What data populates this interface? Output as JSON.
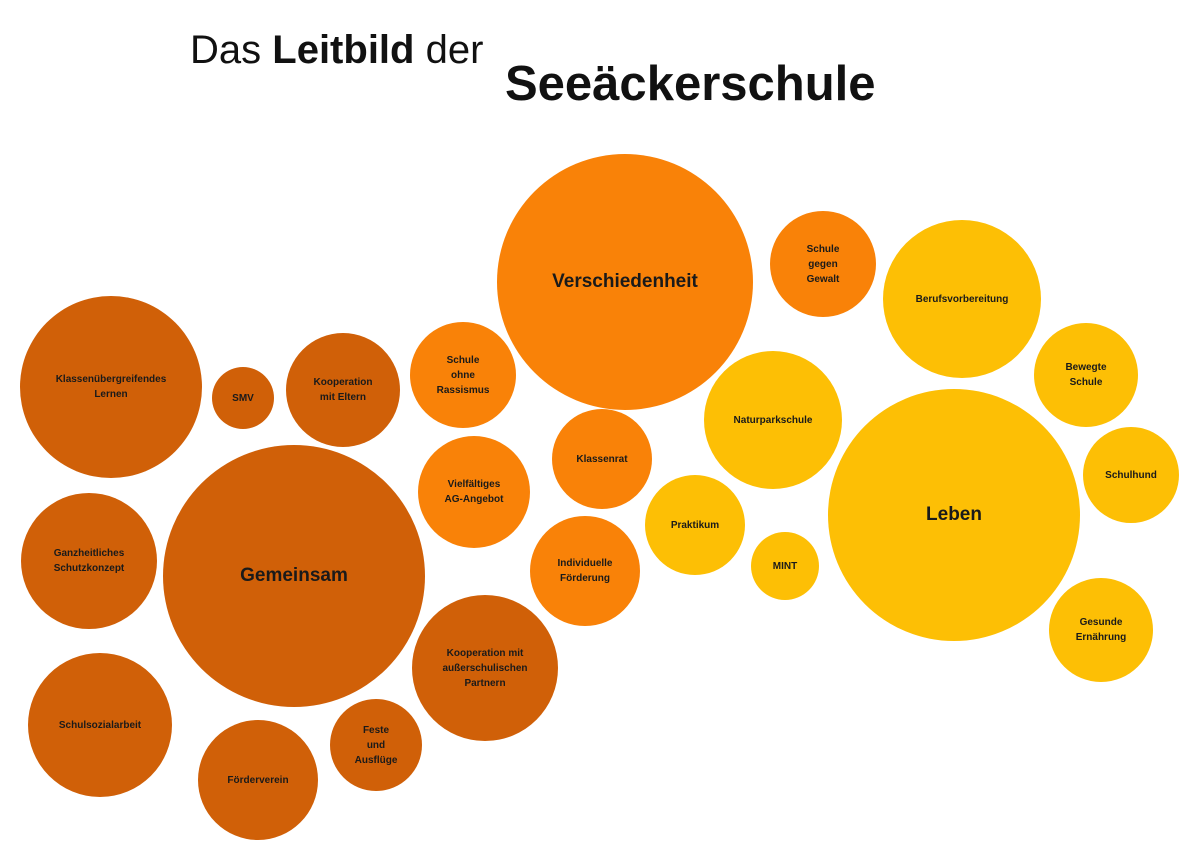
{
  "title": {
    "prefix": "Das",
    "bold": "Leitbild",
    "suffix": "der",
    "school": "Seeäckerschule"
  },
  "colors": {
    "dark_orange": "#D06008",
    "orange": "#F98208",
    "yellow": "#FDBF05"
  },
  "bubbles": [
    {
      "id": "klassenuebergreifendes-lernen",
      "label": "Klassenübergreifendes\nLernen",
      "color": "dark_orange"
    },
    {
      "id": "smv",
      "label": "SMV",
      "color": "dark_orange"
    },
    {
      "id": "kooperation-mit-eltern",
      "label": "Kooperation\nmit Eltern",
      "color": "dark_orange"
    },
    {
      "id": "ganzheitliches-schutzkonzept",
      "label": "Ganzheitliches\nSchutzkonzept",
      "color": "dark_orange"
    },
    {
      "id": "gemeinsam",
      "label": "Gemeinsam",
      "color": "dark_orange"
    },
    {
      "id": "schulsozialarbeit",
      "label": "Schulsozialarbeit",
      "color": "dark_orange"
    },
    {
      "id": "foerderverein",
      "label": "Förderverein",
      "color": "dark_orange"
    },
    {
      "id": "feste-und-ausfluege",
      "label": "Feste\nund\nAusflüge",
      "color": "dark_orange"
    },
    {
      "id": "kooperation-mit-ausserschulischen-partnern",
      "label": "Kooperation mit\naußerschulischen\nPartnern",
      "color": "dark_orange"
    },
    {
      "id": "schule-ohne-rassismus",
      "label": "Schule\nohne\nRassismus",
      "color": "orange"
    },
    {
      "id": "vielfaeltiges-ag-angebot",
      "label": "Vielfältiges\nAG-Angebot",
      "color": "orange"
    },
    {
      "id": "verschiedenheit",
      "label": "Verschiedenheit",
      "color": "orange"
    },
    {
      "id": "schule-gegen-gewalt",
      "label": "Schule\ngegen\nGewalt",
      "color": "orange"
    },
    {
      "id": "klassenrat",
      "label": "Klassenrat",
      "color": "orange"
    },
    {
      "id": "individuelle-foerderung",
      "label": "Individuelle\nFörderung",
      "color": "orange"
    },
    {
      "id": "praktikum",
      "label": "Praktikum",
      "color": "yellow"
    },
    {
      "id": "naturparkschule",
      "label": "Naturparkschule",
      "color": "yellow"
    },
    {
      "id": "mint",
      "label": "MINT",
      "color": "yellow"
    },
    {
      "id": "berufsvorbereitung",
      "label": "Berufsvorbereitung",
      "color": "yellow"
    },
    {
      "id": "bewegte-schule",
      "label": "Bewegte\nSchule",
      "color": "yellow"
    },
    {
      "id": "leben",
      "label": "Leben",
      "color": "yellow"
    },
    {
      "id": "schulhund",
      "label": "Schulhund",
      "color": "yellow"
    },
    {
      "id": "gesunde-ernaehrung",
      "label": "Gesunde\nErnährung",
      "color": "yellow"
    }
  ]
}
